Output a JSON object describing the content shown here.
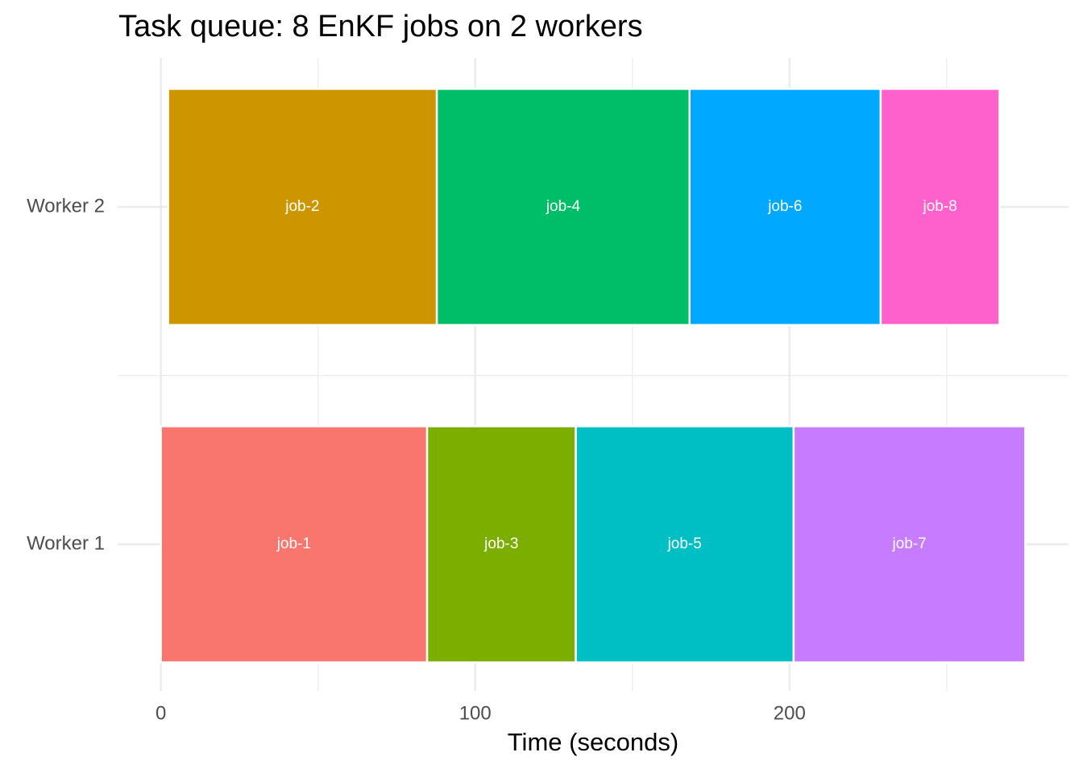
{
  "chart_data": {
    "type": "gantt",
    "title": "Task queue: 8 EnKF jobs on 2 workers",
    "x_label": "Time (seconds)",
    "categories": [
      "Worker 1",
      "Worker 2"
    ],
    "tasks": [
      {
        "name": "job-1",
        "worker": "Worker 1",
        "start": 0,
        "end": 84.7,
        "color": "#f8766d"
      },
      {
        "name": "job-2",
        "worker": "Worker 2",
        "start": 2.3,
        "end": 87.8,
        "color": "#cd9600"
      },
      {
        "name": "job-3",
        "worker": "Worker 1",
        "start": 84.7,
        "end": 132.0,
        "color": "#7cae00"
      },
      {
        "name": "job-4",
        "worker": "Worker 2",
        "start": 87.8,
        "end": 168.2,
        "color": "#00be67"
      },
      {
        "name": "job-5",
        "worker": "Worker 1",
        "start": 132.0,
        "end": 201.3,
        "color": "#00bfc4"
      },
      {
        "name": "job-6",
        "worker": "Worker 2",
        "start": 168.2,
        "end": 229.0,
        "color": "#00a9ff"
      },
      {
        "name": "job-7",
        "worker": "Worker 1",
        "start": 201.3,
        "end": 275.0,
        "color": "#c77cff"
      },
      {
        "name": "job-8",
        "worker": "Worker 2",
        "start": 229.0,
        "end": 266.8,
        "color": "#ff61cc"
      }
    ],
    "xlim": [
      -13.75,
      288.75
    ],
    "xticks": [
      0,
      100,
      200
    ],
    "minor_xticks": [
      50,
      150,
      250
    ],
    "grid": true
  }
}
